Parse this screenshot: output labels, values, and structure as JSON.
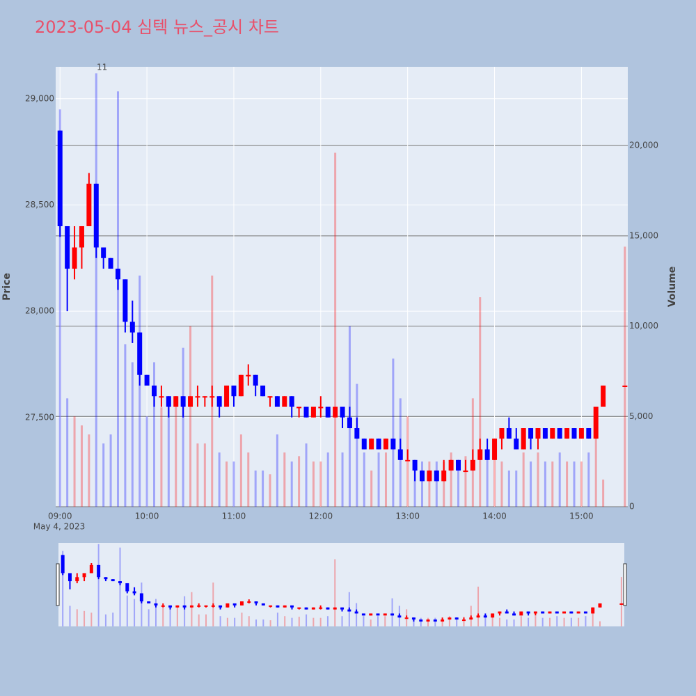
{
  "chart_data": {
    "type": "candlestick",
    "title": "2023-05-04 심텍 뉴스_공시 차트",
    "ylabel": "Price",
    "y2label": "Volume",
    "x_sublabel": "May 4, 2023",
    "annotation": {
      "text": "11",
      "x": "09:29"
    },
    "colors": {
      "increasing": "#ff0000",
      "decreasing": "#0000ff"
    },
    "grid": true,
    "rangeslider": true,
    "xlim": [
      "08:57",
      "15:32"
    ],
    "xticks": [
      "09:00",
      "10:00",
      "11:00",
      "12:00",
      "13:00",
      "14:00",
      "15:00"
    ],
    "ylim": [
      27080,
      29150
    ],
    "yticks": [
      {
        "value": 27500,
        "label": "27,500"
      },
      {
        "value": 28000,
        "label": "28,000"
      },
      {
        "value": 28500,
        "label": "28,500"
      },
      {
        "value": 29000,
        "label": "29,000"
      }
    ],
    "y2lim": [
      0,
      24360
    ],
    "y2ticks": [
      0,
      {
        "value": 5000,
        "label": "5,000"
      },
      {
        "value": 10000,
        "label": "10,000"
      },
      {
        "value": 15000,
        "label": "15,000"
      },
      {
        "value": 20000,
        "label": "20,000"
      }
    ],
    "x": [
      "09:00",
      "09:05",
      "09:10",
      "09:15",
      "09:20",
      "09:25",
      "09:30",
      "09:35",
      "09:40",
      "09:45",
      "09:50",
      "09:55",
      "10:00",
      "10:05",
      "10:10",
      "10:15",
      "10:20",
      "10:25",
      "10:30",
      "10:35",
      "10:40",
      "10:45",
      "10:50",
      "10:55",
      "11:00",
      "11:05",
      "11:10",
      "11:15",
      "11:20",
      "11:25",
      "11:30",
      "11:35",
      "11:40",
      "11:45",
      "11:50",
      "11:55",
      "12:00",
      "12:05",
      "12:10",
      "12:15",
      "12:20",
      "12:25",
      "12:30",
      "12:35",
      "12:40",
      "12:45",
      "12:50",
      "12:55",
      "13:00",
      "13:05",
      "13:10",
      "13:15",
      "13:20",
      "13:25",
      "13:30",
      "13:35",
      "13:40",
      "13:45",
      "13:50",
      "13:55",
      "14:00",
      "14:05",
      "14:10",
      "14:15",
      "14:20",
      "14:25",
      "14:30",
      "14:35",
      "14:40",
      "14:45",
      "14:50",
      "14:55",
      "15:00",
      "15:05",
      "15:10",
      "15:15",
      "15:30"
    ],
    "open": [
      28850,
      28400,
      28200,
      28300,
      28400,
      28600,
      28300,
      28250,
      28200,
      28150,
      27950,
      27900,
      27700,
      27650,
      27600,
      27600,
      27550,
      27600,
      27550,
      27600,
      27600,
      27600,
      27600,
      27550,
      27650,
      27600,
      27700,
      27700,
      27650,
      27600,
      27600,
      27550,
      27600,
      27550,
      27550,
      27500,
      27550,
      27550,
      27500,
      27550,
      27500,
      27450,
      27400,
      27350,
      27400,
      27350,
      27400,
      27350,
      27300,
      27300,
      27250,
      27200,
      27250,
      27200,
      27250,
      27300,
      27250,
      27250,
      27300,
      27350,
      27300,
      27400,
      27450,
      27400,
      27350,
      27450,
      27400,
      27450,
      27400,
      27450,
      27400,
      27450,
      27400,
      27450,
      27400,
      27550,
      27650
    ],
    "high": [
      28850,
      28400,
      28400,
      28400,
      28650,
      28600,
      28300,
      28250,
      28200,
      28150,
      28050,
      27900,
      27700,
      27650,
      27650,
      27600,
      27600,
      27600,
      27600,
      27650,
      27600,
      27650,
      27600,
      27650,
      27650,
      27700,
      27750,
      27700,
      27650,
      27600,
      27600,
      27600,
      27600,
      27550,
      27550,
      27550,
      27600,
      27550,
      27550,
      27550,
      27550,
      27500,
      27400,
      27400,
      27400,
      27400,
      27400,
      27400,
      27350,
      27300,
      27250,
      27250,
      27250,
      27300,
      27300,
      27300,
      27300,
      27350,
      27400,
      27400,
      27400,
      27450,
      27500,
      27450,
      27450,
      27450,
      27450,
      27450,
      27450,
      27450,
      27450,
      27450,
      27450,
      27450,
      27550,
      27650,
      27650
    ],
    "low": [
      28350,
      28000,
      28150,
      28200,
      28400,
      28250,
      28200,
      28200,
      28100,
      27900,
      27850,
      27650,
      27650,
      27550,
      27550,
      27500,
      27550,
      27500,
      27550,
      27550,
      27550,
      27550,
      27500,
      27550,
      27550,
      27600,
      27650,
      27600,
      27600,
      27550,
      27550,
      27550,
      27500,
      27500,
      27500,
      27500,
      27500,
      27500,
      27500,
      27450,
      27450,
      27400,
      27350,
      27350,
      27350,
      27350,
      27350,
      27300,
      27300,
      27200,
      27200,
      27200,
      27200,
      27200,
      27250,
      27250,
      27250,
      27250,
      27300,
      27300,
      27300,
      27350,
      27400,
      27350,
      27350,
      27350,
      27350,
      27400,
      27400,
      27400,
      27400,
      27400,
      27400,
      27400,
      27400,
      27550,
      27650
    ],
    "close": [
      28400,
      28200,
      28300,
      28400,
      28600,
      28300,
      28250,
      28200,
      28150,
      27950,
      27900,
      27700,
      27650,
      27600,
      27600,
      27550,
      27600,
      27550,
      27600,
      27600,
      27600,
      27600,
      27550,
      27650,
      27600,
      27700,
      27700,
      27650,
      27600,
      27600,
      27550,
      27600,
      27550,
      27550,
      27500,
      27550,
      27550,
      27500,
      27550,
      27500,
      27450,
      27400,
      27350,
      27400,
      27350,
      27400,
      27350,
      27300,
      27300,
      27250,
      27200,
      27250,
      27200,
      27250,
      27300,
      27250,
      27250,
      27300,
      27350,
      27300,
      27400,
      27450,
      27400,
      27350,
      27450,
      27400,
      27450,
      27400,
      27450,
      27400,
      27450,
      27400,
      27450,
      27400,
      27550,
      27650,
      27650
    ],
    "volume": [
      22000,
      6000,
      5000,
      4500,
      4000,
      24000,
      3500,
      4000,
      23000,
      9000,
      8000,
      12800,
      5000,
      8000,
      5500,
      6000,
      6000,
      8800,
      10000,
      3500,
      3500,
      12800,
      3000,
      2500,
      2500,
      4000,
      3000,
      2000,
      2000,
      1800,
      4000,
      3000,
      2500,
      2800,
      3500,
      2500,
      2500,
      3000,
      19600,
      3000,
      10000,
      6800,
      3000,
      2000,
      3000,
      3000,
      8200,
      6000,
      5000,
      2000,
      2500,
      2500,
      2500,
      2500,
      3000,
      2000,
      2800,
      6000,
      11600,
      3000,
      3000,
      2500,
      2000,
      2000,
      3000,
      2500,
      3000,
      2500,
      2500,
      3000,
      2500,
      2500,
      2500,
      3000,
      4500,
      1500,
      14400
    ]
  }
}
